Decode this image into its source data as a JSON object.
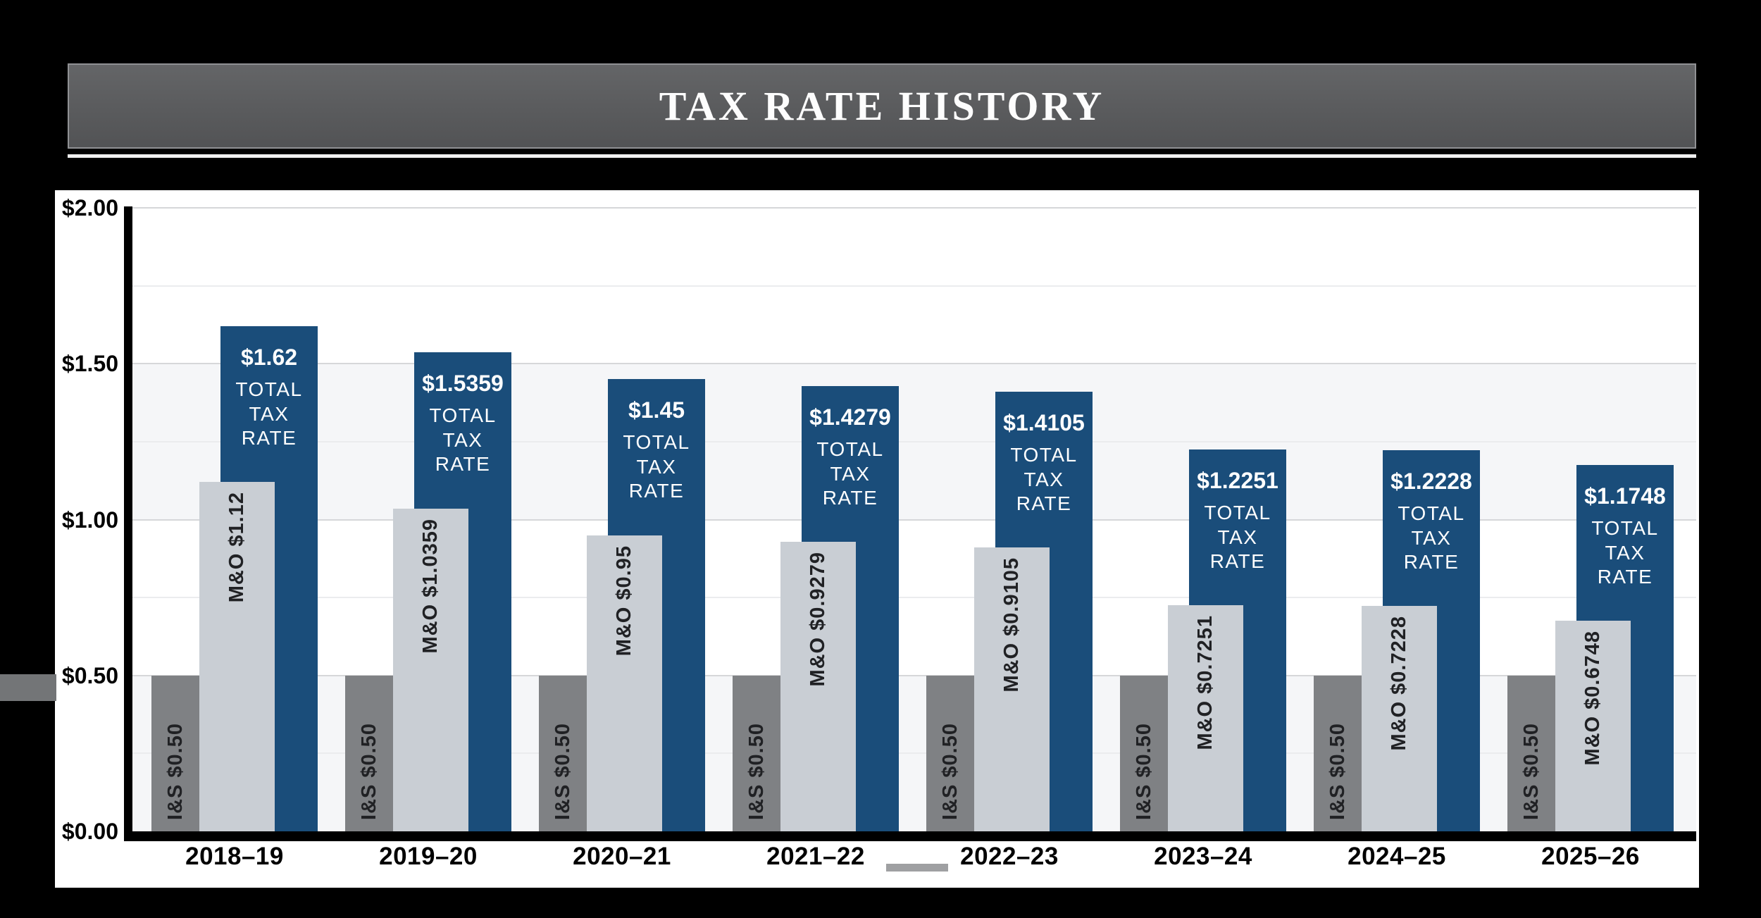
{
  "banner": {
    "title": "TAX RATE HISTORY"
  },
  "colors": {
    "page_background": "#000000",
    "banner_background": "#58595b",
    "banner_border": "#909194",
    "banner_underline": "#efefef",
    "panel_background": "#ffffff",
    "axis": "#000000",
    "is_bar": "#7f8184",
    "mo_bar": "#c9ced4",
    "total_bar": "#1a4d7a",
    "dark_label": "#202124",
    "light_label": "#ffffff",
    "gridline_major": "#d6d7d9",
    "gridline_minor": "#ebecee",
    "band": "#f5f6f8",
    "tick_label": "#000000"
  },
  "chart_data": {
    "type": "bar",
    "title": "TAX RATE HISTORY",
    "categories": [
      "2018–19",
      "2019–20",
      "2020–21",
      "2021–22",
      "2022–23",
      "2023–24",
      "2024–25",
      "2025–26"
    ],
    "series": [
      {
        "name": "I&S",
        "color": "#7f8184",
        "values": [
          0.5,
          0.5,
          0.5,
          0.5,
          0.5,
          0.5,
          0.5,
          0.5
        ],
        "bar_labels": [
          "I&S $0.50",
          "I&S $0.50",
          "I&S $0.50",
          "I&S $0.50",
          "I&S $0.50",
          "I&S $0.50",
          "I&S $0.50",
          "I&S $0.50"
        ]
      },
      {
        "name": "M&O",
        "color": "#c9ced4",
        "values": [
          1.12,
          1.0359,
          0.95,
          0.9279,
          0.9105,
          0.7251,
          0.7228,
          0.6748
        ],
        "bar_labels": [
          "M&O $1.12",
          "M&O $1.0359",
          "M&O $0.95",
          "M&O $0.9279",
          "M&O $0.9105",
          "M&O $0.7251",
          "M&O $0.7228",
          "M&O $0.6748"
        ]
      },
      {
        "name": "Total Tax Rate",
        "color": "#1a4d7a",
        "values": [
          1.62,
          1.5359,
          1.45,
          1.4279,
          1.4105,
          1.2251,
          1.2228,
          1.1748
        ],
        "bar_labels": [
          "$1.62",
          "$1.5359",
          "$1.45",
          "$1.4279",
          "$1.4105",
          "$1.2251",
          "$1.2228",
          "$1.1748"
        ],
        "caption": "TOTAL TAX RATE"
      }
    ],
    "y_axis": {
      "min": 0,
      "max": 2,
      "grid_interval": 0.25,
      "tick_labels": [
        "$2.00",
        "$1.50",
        "$1.00",
        "$0.50",
        "$0.00"
      ],
      "tick_values": [
        2.0,
        1.5,
        1.0,
        0.5,
        0.0
      ]
    },
    "x_axis": {
      "label": ""
    },
    "legend": null,
    "grid": true
  }
}
